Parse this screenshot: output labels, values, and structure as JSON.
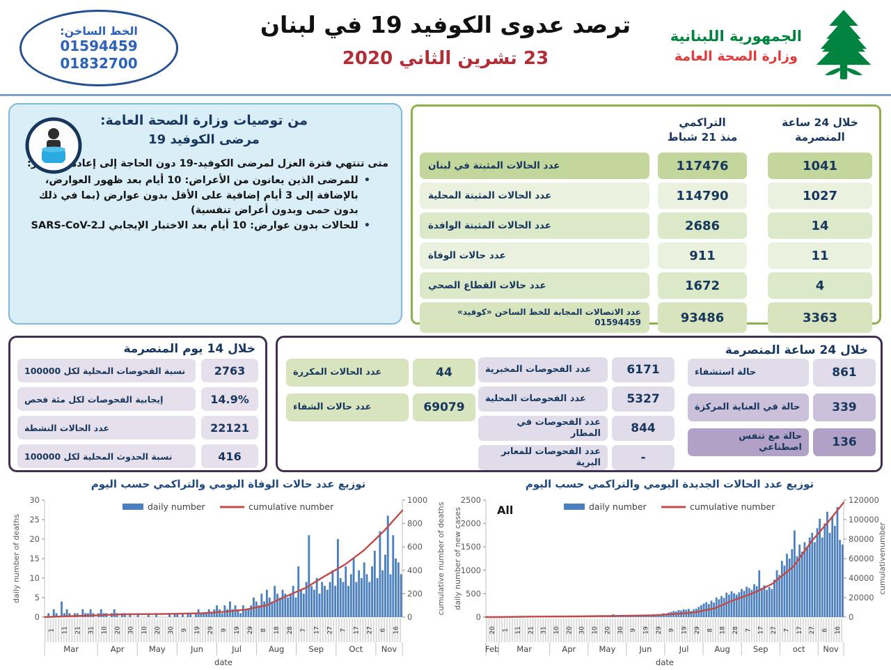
{
  "header": {
    "hotline": {
      "label": "الخط الساخن:",
      "numbers": [
        "01594459",
        "01832700"
      ]
    },
    "title": "ترصد عدوى الكوفيد 19 في لبنان",
    "date": "23 تشرين الثاني 2020",
    "ministry": {
      "line1": "الجمهورية اللبنانية",
      "line2": "وزارة الصحة العامة"
    }
  },
  "recommendations": {
    "title_line1": "من توصيات وزارة الصحة العامة:",
    "title_line2": "مرضى الكوفيد 19",
    "intro": "متى تنتهي فترة العزل لمرضى الكوفيد-19 دون الحاجة إلى إعادة الاختبار:",
    "bullets": [
      "للمرضى الذين يعانون من الأعراض: 10 أيام بعد ظهور العوارض، بالإضافة إلى 3 أيام إضافية على الأقل بدون عوارض (بما في ذلك بدون حمى وبدون أعراض تنفسية)",
      "للحالات بدون عوارض:  10 أيام بعد الاختبار الإيجابي لـSARS-CoV-2"
    ]
  },
  "summary_table": {
    "col_cumulative_line1": "التراكمي",
    "col_cumulative_line2": "منذ 21 شباط",
    "col_24h_line1": "خلال 24 ساعة",
    "col_24h_line2": "المنصرمة",
    "rows": [
      {
        "label": "عدد الحالات المثبتة في لبنان",
        "cumulative": "117476",
        "last24h": "1041"
      },
      {
        "label": "عدد الحالات المثبتة المحلية",
        "cumulative": "114790",
        "last24h": "1027"
      },
      {
        "label": "عدد الحالات المثبتة الوافدة",
        "cumulative": "2686",
        "last24h": "14"
      },
      {
        "label": "عدد حالات الوفاة",
        "cumulative": "911",
        "last24h": "11"
      },
      {
        "label": "عدد حالات القطاع الصحي",
        "cumulative": "1672",
        "last24h": "4"
      },
      {
        "label": "عدد الاتصالات المجابة  للخط الساخن «كوفيد» 01594459",
        "cumulative": "93486",
        "last24h": "3363"
      }
    ]
  },
  "last14days": {
    "title": "خلال 14 يوم المنصرمة",
    "rows": [
      {
        "label": "نسبة الفحوصات  المحلية لكل 100000",
        "value": "2763"
      },
      {
        "label": "إيجابية الفحوصات لكل مئة فحص",
        "value": "14.9%"
      },
      {
        "label": "عدد الحالات النشطة",
        "value": "22121"
      },
      {
        "label": "نسبة الحدوث المحلية لكل 100000",
        "value": "416"
      }
    ]
  },
  "last24hours": {
    "title": "خلال 24 ساعة المنصرمة",
    "cases_group": [
      {
        "label": "عدد الحالات المكررة",
        "value": "44"
      },
      {
        "label": "عدد حالات الشفاء",
        "value": "69079"
      }
    ],
    "tests_group": [
      {
        "label": "عدد الفحوصات المخبرية",
        "value": "6171"
      },
      {
        "label": "عدد الفحوصات المحلية",
        "value": "5327"
      },
      {
        "label": "عدد الفحوصات في المطار",
        "value": "844"
      },
      {
        "label": "عدد الفحوصات للمعابر البرية",
        "value": "-"
      }
    ],
    "hospital_group": [
      {
        "label": "حالة استشفاء",
        "value": "861"
      },
      {
        "label": "حالة في العناية المركزة",
        "value": "339"
      },
      {
        "label": "حالة مع تنفس اصطناعي",
        "value": "136"
      }
    ]
  },
  "colors": {
    "bar": "#4C7FBE",
    "line": "#BE4B48",
    "navy": "#17365D",
    "green_border": "#8DB04A",
    "purple_border": "#403152",
    "date_red": "#B02E35"
  },
  "chart_data": [
    {
      "type": "bar+line",
      "title": "توزيع عدد حالات  الوفاة اليومي والتراكمي حسب اليوم",
      "legend": {
        "bars": "daily number",
        "line": "cumulative number"
      },
      "left_axis": {
        "min": 0,
        "max": 30,
        "step": 5,
        "label": "daily number of deaths"
      },
      "right_axis": {
        "min": 0,
        "max": 1000,
        "step": 200,
        "label": "cumulative number of deaths"
      },
      "xlabel": "date",
      "days_span": 268,
      "months": [
        {
          "label": "Mar",
          "ticks": [
            "1",
            "11",
            "21",
            "31"
          ]
        },
        {
          "label": "Apr",
          "ticks": [
            "10",
            "20",
            "30"
          ]
        },
        {
          "label": "May",
          "ticks": [
            "10",
            "20",
            "30"
          ]
        },
        {
          "label": "Jun",
          "ticks": [
            "9",
            "19",
            "29"
          ]
        },
        {
          "label": "Jul",
          "ticks": [
            "9",
            "19",
            "29"
          ]
        },
        {
          "label": "Aug",
          "ticks": [
            "8",
            "18",
            "28"
          ]
        },
        {
          "label": "Sep",
          "ticks": [
            "7",
            "17",
            "27"
          ]
        },
        {
          "label": "Oct",
          "ticks": [
            "7",
            "17",
            "27"
          ]
        },
        {
          "label": "Nov",
          "ticks": [
            "6",
            "16"
          ]
        }
      ],
      "daily": [
        0,
        1,
        0,
        2,
        1,
        0,
        4,
        1,
        2,
        1,
        0,
        1,
        1,
        0,
        2,
        1,
        1,
        2,
        1,
        0,
        1,
        2,
        1,
        1,
        0,
        1,
        2,
        1,
        0,
        1,
        1,
        0,
        1,
        0,
        0,
        1,
        0,
        0,
        0,
        1,
        0,
        0,
        1,
        0,
        0,
        0,
        0,
        1,
        0,
        1,
        1,
        0,
        1,
        0,
        1,
        1,
        0,
        1,
        2,
        1,
        1,
        1,
        2,
        1,
        2,
        3,
        2,
        1,
        3,
        2,
        4,
        2,
        3,
        2,
        1,
        3,
        2,
        2,
        3,
        5,
        4,
        3,
        6,
        4,
        7,
        5,
        4,
        8,
        6,
        5,
        7,
        6,
        5,
        6,
        8,
        5,
        13,
        7,
        6,
        9,
        21,
        8,
        7,
        10,
        6,
        9,
        8,
        7,
        9,
        12,
        8,
        20,
        10,
        9,
        13,
        8,
        11,
        15,
        9,
        12,
        10,
        14,
        11,
        9,
        13,
        17,
        10,
        22,
        12,
        16,
        26,
        11,
        21,
        15,
        14,
        11
      ],
      "cumulative_anchors": [
        [
          0,
          0
        ],
        [
          0.11,
          12
        ],
        [
          0.22,
          24
        ],
        [
          0.33,
          26
        ],
        [
          0.44,
          33
        ],
        [
          0.5,
          45
        ],
        [
          0.56,
          63
        ],
        [
          0.62,
          100
        ],
        [
          0.67,
          171
        ],
        [
          0.73,
          250
        ],
        [
          0.78,
          344
        ],
        [
          0.84,
          450
        ],
        [
          0.89,
          564
        ],
        [
          0.95,
          740
        ],
        [
          1,
          911
        ]
      ],
      "cumulative_final": 911
    },
    {
      "type": "bar+line",
      "title": "توزيع عدد الحالات الجديدة اليومي والتراكمي حسب اليوم",
      "annotation": "All",
      "legend": {
        "bars": "daily number",
        "line": "cumulative number"
      },
      "left_axis": {
        "min": 0,
        "max": 2500,
        "step": 500,
        "label": "daily number of new cases"
      },
      "right_axis": {
        "min": 0,
        "max": 120000,
        "step": 20000,
        "label": "cumulativenumber"
      },
      "xlabel": "date",
      "days_span": 278,
      "months": [
        {
          "label": "Feb",
          "ticks": [
            "20"
          ]
        },
        {
          "label": "Mar",
          "ticks": [
            "1",
            "11",
            "21",
            "31"
          ]
        },
        {
          "label": "Apr",
          "ticks": [
            "10",
            "20",
            "30"
          ]
        },
        {
          "label": "May",
          "ticks": [
            "10",
            "20",
            "30"
          ]
        },
        {
          "label": "Jun",
          "ticks": [
            "9",
            "19",
            "29"
          ]
        },
        {
          "label": "Jul",
          "ticks": [
            "9",
            "19",
            "29"
          ]
        },
        {
          "label": "Aug",
          "ticks": [
            "8",
            "18",
            "28"
          ]
        },
        {
          "label": "Sep",
          "ticks": [
            "7",
            "17",
            "27"
          ]
        },
        {
          "label": "oct",
          "ticks": [
            "7",
            "17",
            "27"
          ]
        },
        {
          "label": "Nov",
          "ticks": [
            "6",
            "16"
          ]
        }
      ],
      "daily": [
        1,
        0,
        2,
        1,
        3,
        4,
        6,
        10,
        8,
        15,
        12,
        20,
        18,
        25,
        15,
        22,
        18,
        12,
        16,
        14,
        10,
        8,
        12,
        10,
        15,
        9,
        13,
        11,
        16,
        10,
        8,
        12,
        9,
        11,
        7,
        10,
        12,
        8,
        15,
        25,
        18,
        30,
        22,
        35,
        28,
        40,
        32,
        26,
        30,
        24,
        60,
        35,
        20,
        15,
        25,
        30,
        22,
        35,
        28,
        40,
        45,
        38,
        50,
        42,
        55,
        48,
        60,
        35,
        45,
        60,
        80,
        65,
        95,
        110,
        130,
        120,
        150,
        140,
        166,
        155,
        175,
        132,
        168,
        180,
        220,
        255,
        290,
        320,
        280,
        350,
        310,
        420,
        380,
        450,
        410,
        520,
        480,
        550,
        510,
        480,
        530,
        600,
        560,
        650,
        620,
        580,
        700,
        660,
        1000,
        620,
        680,
        580,
        640,
        600,
        800,
        1000,
        900,
        1200,
        1100,
        1350,
        1250,
        1450,
        1850,
        1300,
        1550,
        1400,
        1600,
        1500,
        1700,
        1800,
        1600,
        1900,
        2100,
        1700,
        2000,
        2250,
        1800,
        2150,
        1950,
        2350,
        1650,
        1550
      ],
      "cumulative_anchors": [
        [
          0,
          0
        ],
        [
          0.03,
          10
        ],
        [
          0.14,
          470
        ],
        [
          0.25,
          710
        ],
        [
          0.36,
          1200
        ],
        [
          0.47,
          1800
        ],
        [
          0.58,
          4600
        ],
        [
          0.64,
          9000
        ],
        [
          0.69,
          17000
        ],
        [
          0.75,
          25000
        ],
        [
          0.8,
          34000
        ],
        [
          0.86,
          52000
        ],
        [
          0.91,
          77500
        ],
        [
          0.96,
          99000
        ],
        [
          1,
          117476
        ]
      ],
      "cumulative_final": 117476
    }
  ]
}
